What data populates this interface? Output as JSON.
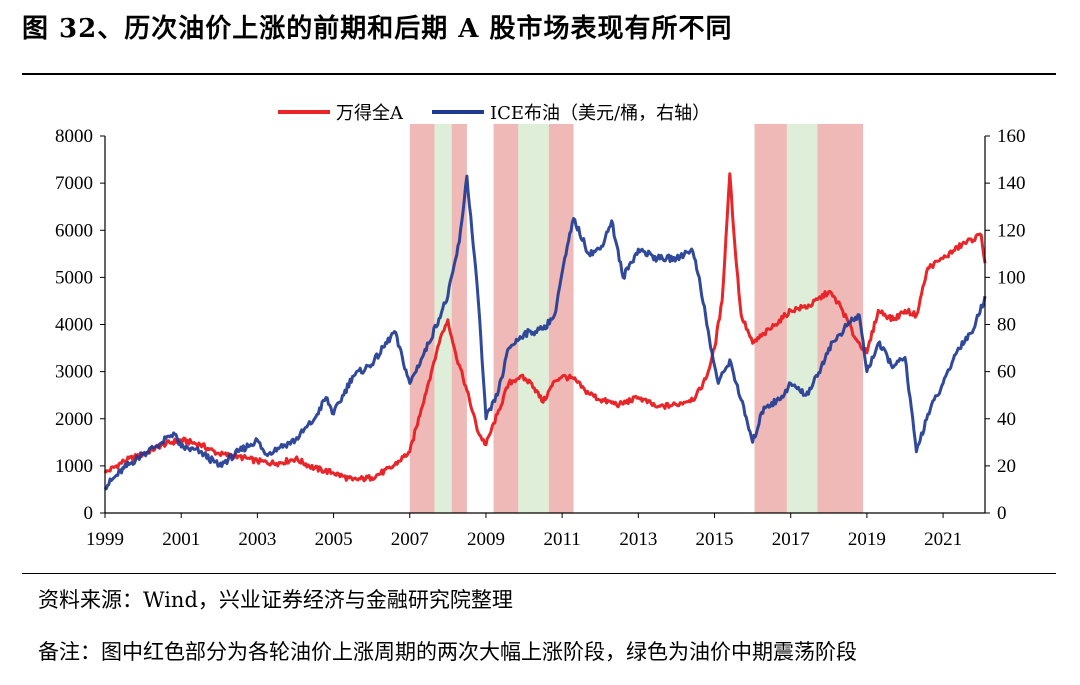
{
  "header": {
    "title": "图 32、历次油价上涨的前期和后期 A 股市场表现有所不同"
  },
  "footer": {
    "source": "资料来源：Wind，兴业证券经济与金融研究院整理",
    "note": "备注：图中红色部分为各轮油价上涨周期的两次大幅上涨阶段，绿色为油价中期震荡阶段"
  },
  "chart_data": {
    "type": "line",
    "title": "历次油价上涨的前期和后期 A 股市场表现有所不同",
    "x_ticks": [
      "1999",
      "2001",
      "2003",
      "2005",
      "2007",
      "2009",
      "2011",
      "2013",
      "2015",
      "2017",
      "2019",
      "2021"
    ],
    "xlim": [
      1999,
      2022.1
    ],
    "y_left": {
      "ylim": [
        0,
        8000
      ],
      "ticks": [
        "0",
        "1000",
        "2000",
        "3000",
        "4000",
        "5000",
        "6000",
        "7000",
        "8000"
      ]
    },
    "y_right": {
      "ylim": [
        0,
        160
      ],
      "ticks": [
        "0",
        "20",
        "40",
        "60",
        "80",
        "100",
        "120",
        "140",
        "160"
      ]
    },
    "legend": {
      "placement": "top-center",
      "entries": [
        "万得全A",
        "ICE布油（美元/桶，右轴）"
      ]
    },
    "colors": {
      "wind_a": "#e8262a",
      "brent": "#1f3a93",
      "red_band": "#efb9b7",
      "green_band": "#dfeed8"
    },
    "bands": [
      {
        "start": 2007.0,
        "end": 2007.65,
        "kind": "red"
      },
      {
        "start": 2007.65,
        "end": 2008.1,
        "kind": "green"
      },
      {
        "start": 2008.1,
        "end": 2008.5,
        "kind": "red"
      },
      {
        "start": 2009.2,
        "end": 2009.85,
        "kind": "red"
      },
      {
        "start": 2009.85,
        "end": 2010.65,
        "kind": "green"
      },
      {
        "start": 2010.65,
        "end": 2011.3,
        "kind": "red"
      },
      {
        "start": 2016.05,
        "end": 2016.9,
        "kind": "red"
      },
      {
        "start": 2016.9,
        "end": 2017.7,
        "kind": "green"
      },
      {
        "start": 2017.7,
        "end": 2018.9,
        "kind": "red"
      }
    ],
    "series": [
      {
        "name": "万得全A",
        "axis": "left",
        "points": [
          [
            1999.0,
            850
          ],
          [
            1999.5,
            1100
          ],
          [
            2000.0,
            1250
          ],
          [
            2000.5,
            1450
          ],
          [
            2001.0,
            1550
          ],
          [
            2001.5,
            1450
          ],
          [
            2002.0,
            1250
          ],
          [
            2002.5,
            1200
          ],
          [
            2003.0,
            1100
          ],
          [
            2003.5,
            1050
          ],
          [
            2004.0,
            1150
          ],
          [
            2004.5,
            950
          ],
          [
            2005.0,
            850
          ],
          [
            2005.5,
            700
          ],
          [
            2006.0,
            750
          ],
          [
            2006.5,
            950
          ],
          [
            2007.0,
            1300
          ],
          [
            2007.3,
            2200
          ],
          [
            2007.6,
            3100
          ],
          [
            2007.8,
            3700
          ],
          [
            2008.0,
            4100
          ],
          [
            2008.2,
            3400
          ],
          [
            2008.5,
            2600
          ],
          [
            2008.8,
            1700
          ],
          [
            2009.0,
            1450
          ],
          [
            2009.3,
            2100
          ],
          [
            2009.6,
            2750
          ],
          [
            2009.9,
            2900
          ],
          [
            2010.2,
            2750
          ],
          [
            2010.5,
            2350
          ],
          [
            2010.8,
            2800
          ],
          [
            2011.0,
            2900
          ],
          [
            2011.3,
            2850
          ],
          [
            2011.6,
            2600
          ],
          [
            2012.0,
            2400
          ],
          [
            2012.5,
            2300
          ],
          [
            2013.0,
            2450
          ],
          [
            2013.5,
            2250
          ],
          [
            2014.0,
            2300
          ],
          [
            2014.5,
            2450
          ],
          [
            2014.8,
            2900
          ],
          [
            2015.0,
            3500
          ],
          [
            2015.2,
            4500
          ],
          [
            2015.4,
            7200
          ],
          [
            2015.55,
            5500
          ],
          [
            2015.7,
            4200
          ],
          [
            2016.0,
            3600
          ],
          [
            2016.3,
            3800
          ],
          [
            2016.6,
            4000
          ],
          [
            2017.0,
            4300
          ],
          [
            2017.5,
            4400
          ],
          [
            2018.0,
            4700
          ],
          [
            2018.3,
            4400
          ],
          [
            2018.7,
            3700
          ],
          [
            2019.0,
            3400
          ],
          [
            2019.3,
            4300
          ],
          [
            2019.7,
            4100
          ],
          [
            2020.0,
            4300
          ],
          [
            2020.3,
            4200
          ],
          [
            2020.6,
            5200
          ],
          [
            2021.0,
            5400
          ],
          [
            2021.5,
            5700
          ],
          [
            2022.0,
            5900
          ],
          [
            2022.1,
            5300
          ]
        ]
      },
      {
        "name": "ICE布油（美元/桶，右轴）",
        "axis": "right",
        "points": [
          [
            1999.0,
            11
          ],
          [
            1999.5,
            19
          ],
          [
            2000.0,
            25
          ],
          [
            2000.5,
            30
          ],
          [
            2000.8,
            34
          ],
          [
            2001.0,
            28
          ],
          [
            2001.5,
            26
          ],
          [
            2002.0,
            20
          ],
          [
            2002.5,
            26
          ],
          [
            2003.0,
            31
          ],
          [
            2003.2,
            25
          ],
          [
            2003.6,
            28
          ],
          [
            2004.0,
            31
          ],
          [
            2004.5,
            40
          ],
          [
            2004.8,
            49
          ],
          [
            2005.0,
            42
          ],
          [
            2005.5,
            58
          ],
          [
            2006.0,
            63
          ],
          [
            2006.6,
            77
          ],
          [
            2007.0,
            55
          ],
          [
            2007.5,
            72
          ],
          [
            2008.0,
            92
          ],
          [
            2008.3,
            115
          ],
          [
            2008.5,
            143
          ],
          [
            2008.8,
            90
          ],
          [
            2009.0,
            40
          ],
          [
            2009.3,
            50
          ],
          [
            2009.6,
            70
          ],
          [
            2010.0,
            76
          ],
          [
            2010.5,
            78
          ],
          [
            2010.8,
            84
          ],
          [
            2011.0,
            102
          ],
          [
            2011.3,
            125
          ],
          [
            2011.7,
            110
          ],
          [
            2012.0,
            112
          ],
          [
            2012.3,
            124
          ],
          [
            2012.6,
            100
          ],
          [
            2013.0,
            112
          ],
          [
            2013.5,
            108
          ],
          [
            2014.0,
            108
          ],
          [
            2014.4,
            112
          ],
          [
            2014.6,
            100
          ],
          [
            2014.9,
            70
          ],
          [
            2015.1,
            55
          ],
          [
            2015.4,
            65
          ],
          [
            2015.7,
            48
          ],
          [
            2016.0,
            30
          ],
          [
            2016.3,
            45
          ],
          [
            2016.7,
            48
          ],
          [
            2017.0,
            55
          ],
          [
            2017.4,
            50
          ],
          [
            2017.7,
            58
          ],
          [
            2018.0,
            70
          ],
          [
            2018.5,
            80
          ],
          [
            2018.8,
            84
          ],
          [
            2019.0,
            60
          ],
          [
            2019.3,
            72
          ],
          [
            2019.7,
            62
          ],
          [
            2020.0,
            66
          ],
          [
            2020.3,
            26
          ],
          [
            2020.6,
            42
          ],
          [
            2021.0,
            55
          ],
          [
            2021.4,
            70
          ],
          [
            2021.8,
            78
          ],
          [
            2022.1,
            92
          ]
        ]
      }
    ]
  }
}
